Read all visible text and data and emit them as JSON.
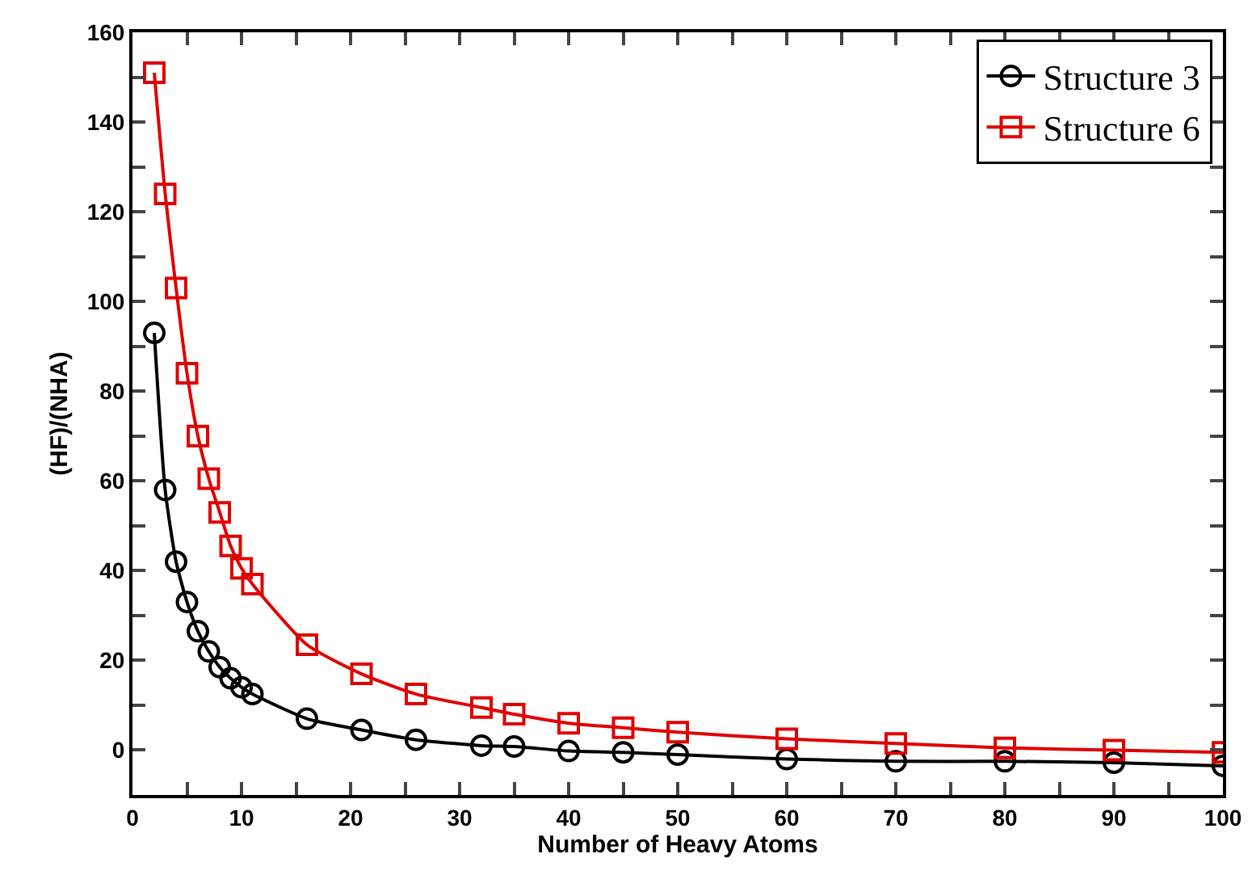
{
  "chart_data": {
    "type": "line",
    "xlabel": "Number of Heavy Atoms",
    "ylabel": "(HF)/(NHA)",
    "x": [
      2,
      3,
      4,
      5,
      6,
      7,
      8,
      9,
      10,
      11,
      16,
      21,
      26,
      32,
      35,
      40,
      45,
      50,
      60,
      70,
      80,
      90,
      100
    ],
    "series": [
      {
        "name": "Structure 3",
        "color": "#000000",
        "marker": "circle",
        "values": [
          93,
          58,
          42,
          33,
          26.5,
          22,
          18.5,
          16,
          14,
          12.5,
          7,
          4.5,
          2.3,
          1,
          0.8,
          -0.2,
          -0.5,
          -1,
          -2,
          -2.5,
          -2.5,
          -2.8,
          -3.5
        ]
      },
      {
        "name": "Structure 6",
        "color": "#e00000",
        "marker": "square",
        "values": [
          151,
          124,
          103,
          84,
          70,
          60.5,
          53,
          45.5,
          40.5,
          37,
          23.5,
          17,
          12.5,
          9.5,
          8,
          6,
          5,
          4,
          2.5,
          1.5,
          0.5,
          0,
          -0.5
        ]
      }
    ],
    "xlim": [
      0,
      100
    ],
    "xticks": [
      0,
      {
        "value": 5,
        "label": null
      },
      10,
      {
        "value": 15,
        "label": null
      },
      20,
      {
        "value": 25,
        "label": null
      },
      30,
      {
        "value": 35,
        "label": null
      },
      40,
      {
        "value": 45,
        "label": null
      },
      50,
      {
        "value": 55,
        "label": null
      },
      60,
      {
        "value": 65,
        "label": null
      },
      70,
      {
        "value": 75,
        "label": null
      },
      80,
      {
        "value": 85,
        "label": null
      },
      90,
      {
        "value": 95,
        "label": null
      },
      100
    ],
    "ylim": [
      -10,
      160
    ],
    "yticks": [
      0,
      {
        "value": 10,
        "label": null
      },
      20,
      {
        "value": 30,
        "label": null
      },
      40,
      {
        "value": 50,
        "label": null
      },
      60,
      {
        "value": 70,
        "label": null
      },
      80,
      {
        "value": 90,
        "label": null
      },
      100,
      {
        "value": 110,
        "label": null
      },
      120,
      {
        "value": 130,
        "label": null
      },
      140,
      {
        "value": 150,
        "label": null
      },
      160
    ],
    "grid": false,
    "legend": "top right",
    "line_style": "solid"
  }
}
